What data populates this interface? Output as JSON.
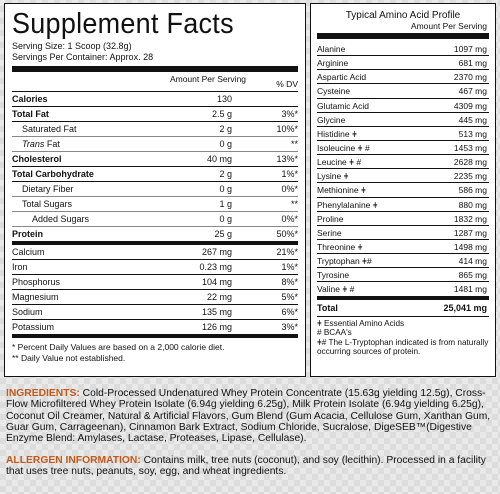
{
  "facts": {
    "title": "Supplement Facts",
    "serving_size": "Serving Size: 1 Scoop (32.8g)",
    "servings_per_container": "Servings Per Container: Approx. 28",
    "col_amount": "Amount Per Serving",
    "col_dv": "% DV",
    "rows": [
      {
        "name": "Calories",
        "amount": "130",
        "dv": ""
      },
      {
        "name": "Total Fat",
        "amount": "2.5 g",
        "dv": "3%*"
      },
      {
        "name": "Saturated Fat",
        "amount": "2 g",
        "dv": "10%*"
      },
      {
        "name": "Trans",
        "name_suffix": " Fat",
        "amount": "0 g",
        "dv": "**"
      },
      {
        "name": "Cholesterol",
        "amount": "40 mg",
        "dv": "13%*"
      },
      {
        "name": "Total Carbohydrate",
        "amount": "2 g",
        "dv": "1%*"
      },
      {
        "name": "Dietary Fiber",
        "amount": "0 g",
        "dv": "0%*"
      },
      {
        "name": "Total Sugars",
        "amount": "1 g",
        "dv": "**"
      },
      {
        "name": "Added Sugars",
        "amount": "0 g",
        "dv": "0%*"
      },
      {
        "name": "Protein",
        "amount": "25 g",
        "dv": "50%*"
      },
      {
        "name": "Calcium",
        "amount": "267 mg",
        "dv": "21%*"
      },
      {
        "name": "Iron",
        "amount": "0.23 mg",
        "dv": "1%*"
      },
      {
        "name": "Phosphorus",
        "amount": "104 mg",
        "dv": "8%*"
      },
      {
        "name": "Magnesium",
        "amount": "22 mg",
        "dv": "5%*"
      },
      {
        "name": "Sodium",
        "amount": "135 mg",
        "dv": "6%*"
      },
      {
        "name": "Potassium",
        "amount": "126 mg",
        "dv": "3%*"
      }
    ],
    "footnote1": "* Percent Daily Values are based on a 2,000 calorie diet.",
    "footnote2": "** Daily Value not established."
  },
  "amino": {
    "title": "Typical Amino Acid Profile",
    "subtitle": "Amount Per Serving",
    "rows": [
      {
        "name": "Alanine",
        "value": "1097 mg"
      },
      {
        "name": "Arginine",
        "value": "681 mg"
      },
      {
        "name": "Aspartic Acid",
        "value": "2370 mg"
      },
      {
        "name": "Cysteine",
        "value": "467 mg"
      },
      {
        "name": "Glutamic Acid",
        "value": "4309 mg"
      },
      {
        "name": "Glycine",
        "value": "445 mg"
      },
      {
        "name": "Histidine ǂ",
        "value": "513 mg"
      },
      {
        "name": "Isoleucine ǂ #",
        "value": "1453 mg"
      },
      {
        "name": "Leucine ǂ #",
        "value": "2628 mg"
      },
      {
        "name": "Lysine ǂ",
        "value": "2235 mg"
      },
      {
        "name": "Methionine ǂ",
        "value": "586 mg"
      },
      {
        "name": "Phenylalanine ǂ",
        "value": "880 mg"
      },
      {
        "name": "Proline",
        "value": "1832 mg"
      },
      {
        "name": "Serine",
        "value": "1287 mg"
      },
      {
        "name": "Threonine ǂ",
        "value": "1498 mg"
      },
      {
        "name": "Tryptophan ǂ#",
        "value": "414 mg"
      },
      {
        "name": "Tyrosine",
        "value": "865 mg"
      },
      {
        "name": "Valine ǂ #",
        "value": "1481 mg"
      }
    ],
    "total_label": "Total",
    "total_value": "25,041 mg",
    "note1": "ǂ Essential Amino Acids",
    "note2": "# BCAA's",
    "note3": "ǂ# The L-Tryptophan indicated is from naturally occurring sources of protein."
  },
  "ingredients": {
    "label": "INGREDIENTS:",
    "text": " Cold-Processed Undenatured Whey Protein Concentrate (15.63g yielding 12.5g), Cross-Flow Microfiltered Whey Protein Isolate (6.94g yielding 6.25g), Milk Protein Isolate (6.94g yielding 6.25g), Coconut Oil Creamer, Natural & Artificial Flavors, Gum Blend (Gum Acacia, Cellulose Gum, Xanthan Gum, Guar Gum, Carrageenan), Cinnamon Bark Extract, Sodium Chloride, Sucralose, DigeSEB™(Digestive Enzyme Blend: Amylases, Lactase, Proteases, Lipase, Cellulase)."
  },
  "allergen": {
    "label": "ALLERGEN INFORMATION:",
    "text": " Contains milk, tree nuts (coconut), and soy (lecithin). Processed in a facility that uses tree nuts, peanuts, soy, egg, and wheat ingredients."
  }
}
